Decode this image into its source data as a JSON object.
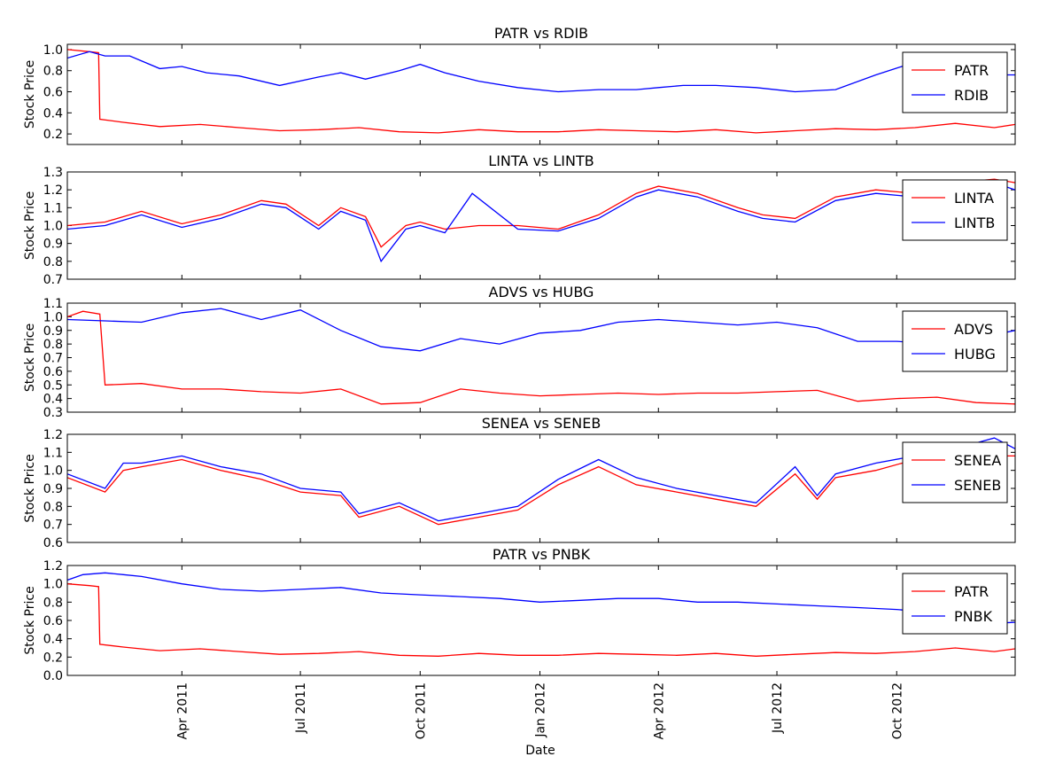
{
  "chart_data": [
    {
      "type": "line",
      "title": "PATR vs RDIB",
      "ylabel": "Stock Price",
      "ylim": [
        0.1,
        1.05
      ],
      "yticks": [
        "0.2",
        "0.4",
        "0.6",
        "0.8",
        "1.0"
      ],
      "legend": "top-right",
      "series": [
        {
          "name": "PATR",
          "color": "#ff0000",
          "x": [
            "2011-01-03",
            "2011-01-20",
            "2011-01-27",
            "2011-01-28",
            "2011-02-15",
            "2011-03-15",
            "2011-04-15",
            "2011-05-15",
            "2011-06-15",
            "2011-07-15",
            "2011-08-15",
            "2011-09-15",
            "2011-10-15",
            "2011-11-15",
            "2011-12-15",
            "2012-01-15",
            "2012-02-15",
            "2012-03-15",
            "2012-04-15",
            "2012-05-15",
            "2012-06-15",
            "2012-07-15",
            "2012-08-15",
            "2012-09-15",
            "2012-10-15",
            "2012-11-15",
            "2012-12-15",
            "2012-12-31"
          ],
          "values": [
            1.0,
            0.98,
            0.97,
            0.34,
            0.31,
            0.27,
            0.29,
            0.26,
            0.23,
            0.24,
            0.26,
            0.22,
            0.21,
            0.24,
            0.22,
            0.22,
            0.24,
            0.23,
            0.22,
            0.24,
            0.21,
            0.23,
            0.25,
            0.24,
            0.26,
            0.3,
            0.26,
            0.29
          ]
        },
        {
          "name": "RDIB",
          "color": "#0000ff",
          "x": [
            "2011-01-03",
            "2011-01-20",
            "2011-02-01",
            "2011-02-20",
            "2011-03-15",
            "2011-04-01",
            "2011-04-20",
            "2011-05-15",
            "2011-06-15",
            "2011-07-15",
            "2011-08-01",
            "2011-08-20",
            "2011-09-15",
            "2011-10-01",
            "2011-10-20",
            "2011-11-15",
            "2011-12-15",
            "2012-01-15",
            "2012-02-15",
            "2012-03-15",
            "2012-04-01",
            "2012-04-20",
            "2012-05-15",
            "2012-06-15",
            "2012-07-15",
            "2012-08-15",
            "2012-09-15",
            "2012-10-15",
            "2012-11-15",
            "2012-12-15",
            "2012-12-31"
          ],
          "values": [
            0.92,
            0.98,
            0.94,
            0.94,
            0.82,
            0.84,
            0.78,
            0.75,
            0.66,
            0.74,
            0.78,
            0.72,
            0.8,
            0.86,
            0.78,
            0.7,
            0.64,
            0.6,
            0.62,
            0.62,
            0.64,
            0.66,
            0.66,
            0.64,
            0.6,
            0.62,
            0.76,
            0.88,
            0.82,
            0.76,
            0.76
          ]
        }
      ]
    },
    {
      "type": "line",
      "title": "LINTA vs LINTB",
      "ylabel": "Stock Price",
      "ylim": [
        0.7,
        1.3
      ],
      "yticks": [
        "0.7",
        "0.8",
        "0.9",
        "1.0",
        "1.1",
        "1.2",
        "1.3"
      ],
      "legend": "top-right",
      "series": [
        {
          "name": "LINTA",
          "color": "#ff0000",
          "x": [
            "2011-01-03",
            "2011-02-01",
            "2011-03-01",
            "2011-04-01",
            "2011-05-01",
            "2011-06-01",
            "2011-06-20",
            "2011-07-15",
            "2011-08-01",
            "2011-08-20",
            "2011-09-01",
            "2011-09-20",
            "2011-10-01",
            "2011-10-20",
            "2011-11-15",
            "2011-12-15",
            "2012-01-15",
            "2012-02-15",
            "2012-03-15",
            "2012-04-01",
            "2012-05-01",
            "2012-06-01",
            "2012-06-20",
            "2012-07-15",
            "2012-08-15",
            "2012-09-15",
            "2012-10-15",
            "2012-11-15",
            "2012-12-15",
            "2012-12-31"
          ],
          "values": [
            1.0,
            1.02,
            1.08,
            1.01,
            1.06,
            1.14,
            1.12,
            1.0,
            1.1,
            1.05,
            0.88,
            1.0,
            1.02,
            0.98,
            1.0,
            1.0,
            0.98,
            1.06,
            1.18,
            1.22,
            1.18,
            1.1,
            1.06,
            1.04,
            1.16,
            1.2,
            1.18,
            1.24,
            1.26,
            1.24
          ]
        },
        {
          "name": "LINTB",
          "color": "#0000ff",
          "x": [
            "2011-01-03",
            "2011-02-01",
            "2011-03-01",
            "2011-04-01",
            "2011-05-01",
            "2011-06-01",
            "2011-06-20",
            "2011-07-15",
            "2011-08-01",
            "2011-08-20",
            "2011-09-01",
            "2011-09-20",
            "2011-10-01",
            "2011-10-20",
            "2011-11-10",
            "2011-12-15",
            "2012-01-15",
            "2012-02-15",
            "2012-03-15",
            "2012-04-01",
            "2012-05-01",
            "2012-06-01",
            "2012-06-20",
            "2012-07-15",
            "2012-08-15",
            "2012-09-15",
            "2012-10-15",
            "2012-11-15",
            "2012-12-15",
            "2012-12-31"
          ],
          "values": [
            0.98,
            1.0,
            1.06,
            0.99,
            1.04,
            1.12,
            1.1,
            0.98,
            1.08,
            1.03,
            0.8,
            0.98,
            1.0,
            0.96,
            1.18,
            0.98,
            0.97,
            1.04,
            1.16,
            1.2,
            1.16,
            1.08,
            1.04,
            1.02,
            1.14,
            1.18,
            1.16,
            1.22,
            1.24,
            1.2
          ]
        }
      ]
    },
    {
      "type": "line",
      "title": "ADVS vs HUBG",
      "ylabel": "Stock Price",
      "ylim": [
        0.3,
        1.1
      ],
      "yticks": [
        "0.3",
        "0.4",
        "0.5",
        "0.6",
        "0.7",
        "0.8",
        "0.9",
        "1.0",
        "1.1"
      ],
      "legend": "top-right",
      "series": [
        {
          "name": "ADVS",
          "color": "#ff0000",
          "x": [
            "2011-01-03",
            "2011-01-15",
            "2011-01-28",
            "2011-02-01",
            "2011-03-01",
            "2011-04-01",
            "2011-05-01",
            "2011-06-01",
            "2011-07-01",
            "2011-08-01",
            "2011-09-01",
            "2011-10-01",
            "2011-11-01",
            "2011-12-01",
            "2012-01-01",
            "2012-02-01",
            "2012-03-01",
            "2012-04-01",
            "2012-05-01",
            "2012-06-01",
            "2012-07-01",
            "2012-08-01",
            "2012-09-01",
            "2012-10-01",
            "2012-11-01",
            "2012-12-01",
            "2012-12-31"
          ],
          "values": [
            1.0,
            1.04,
            1.02,
            0.5,
            0.51,
            0.47,
            0.47,
            0.45,
            0.44,
            0.47,
            0.36,
            0.37,
            0.47,
            0.44,
            0.42,
            0.43,
            0.44,
            0.43,
            0.44,
            0.44,
            0.45,
            0.46,
            0.38,
            0.4,
            0.41,
            0.37,
            0.36
          ]
        },
        {
          "name": "HUBG",
          "color": "#0000ff",
          "x": [
            "2011-01-03",
            "2011-02-01",
            "2011-03-01",
            "2011-04-01",
            "2011-05-01",
            "2011-06-01",
            "2011-07-01",
            "2011-08-01",
            "2011-09-01",
            "2011-10-01",
            "2011-11-01",
            "2011-12-01",
            "2012-01-01",
            "2012-02-01",
            "2012-03-01",
            "2012-04-01",
            "2012-05-01",
            "2012-06-01",
            "2012-07-01",
            "2012-08-01",
            "2012-09-01",
            "2012-10-01",
            "2012-11-01",
            "2012-12-01",
            "2012-12-31"
          ],
          "values": [
            0.98,
            0.97,
            0.96,
            1.03,
            1.06,
            0.98,
            1.05,
            0.9,
            0.78,
            0.75,
            0.84,
            0.8,
            0.88,
            0.9,
            0.96,
            0.98,
            0.96,
            0.94,
            0.96,
            0.92,
            0.82,
            0.82,
            0.8,
            0.84,
            0.9
          ]
        }
      ]
    },
    {
      "type": "line",
      "title": "SENEA vs SENEB",
      "ylabel": "Stock Price",
      "ylim": [
        0.6,
        1.2
      ],
      "yticks": [
        "0.6",
        "0.7",
        "0.8",
        "0.9",
        "1.0",
        "1.1",
        "1.2"
      ],
      "legend": "top-right",
      "series": [
        {
          "name": "SENEA",
          "color": "#ff0000",
          "x": [
            "2011-01-03",
            "2011-02-01",
            "2011-02-15",
            "2011-03-01",
            "2011-04-01",
            "2011-05-01",
            "2011-06-01",
            "2011-07-01",
            "2011-08-01",
            "2011-08-15",
            "2011-09-15",
            "2011-10-15",
            "2011-11-15",
            "2011-12-15",
            "2012-01-15",
            "2012-02-15",
            "2012-03-15",
            "2012-04-15",
            "2012-05-15",
            "2012-06-15",
            "2012-07-15",
            "2012-08-01",
            "2012-08-15",
            "2012-09-15",
            "2012-10-15",
            "2012-11-15",
            "2012-12-15",
            "2012-12-31"
          ],
          "values": [
            0.96,
            0.88,
            1.0,
            1.02,
            1.06,
            1.0,
            0.95,
            0.88,
            0.86,
            0.74,
            0.8,
            0.7,
            0.74,
            0.78,
            0.92,
            1.02,
            0.92,
            0.88,
            0.84,
            0.8,
            0.98,
            0.84,
            0.96,
            1.0,
            1.06,
            1.1,
            1.08,
            1.08
          ]
        },
        {
          "name": "SENEB",
          "color": "#0000ff",
          "x": [
            "2011-01-03",
            "2011-02-01",
            "2011-02-15",
            "2011-03-01",
            "2011-04-01",
            "2011-05-01",
            "2011-06-01",
            "2011-07-01",
            "2011-08-01",
            "2011-08-15",
            "2011-09-15",
            "2011-10-15",
            "2011-11-15",
            "2011-12-15",
            "2012-01-15",
            "2012-02-15",
            "2012-03-15",
            "2012-04-15",
            "2012-05-15",
            "2012-06-15",
            "2012-07-15",
            "2012-08-01",
            "2012-08-15",
            "2012-09-15",
            "2012-10-15",
            "2012-11-15",
            "2012-12-15",
            "2012-12-31"
          ],
          "values": [
            0.98,
            0.9,
            1.04,
            1.04,
            1.08,
            1.02,
            0.98,
            0.9,
            0.88,
            0.76,
            0.82,
            0.72,
            0.76,
            0.8,
            0.95,
            1.06,
            0.96,
            0.9,
            0.86,
            0.82,
            1.02,
            0.86,
            0.98,
            1.04,
            1.08,
            1.12,
            1.18,
            1.12
          ]
        }
      ]
    },
    {
      "type": "line",
      "title": "PATR vs PNBK",
      "ylabel": "Stock Price",
      "xlabel": "Date",
      "ylim": [
        0.0,
        1.2
      ],
      "yticks": [
        "0.0",
        "0.2",
        "0.4",
        "0.6",
        "0.8",
        "1.0",
        "1.2"
      ],
      "xticks": [
        "Apr 2011",
        "Jul 2011",
        "Oct 2011",
        "Jan 2012",
        "Apr 2012",
        "Jul 2012",
        "Oct 2012"
      ],
      "legend": "top-right",
      "series": [
        {
          "name": "PATR",
          "color": "#ff0000",
          "x": [
            "2011-01-03",
            "2011-01-20",
            "2011-01-27",
            "2011-01-28",
            "2011-02-15",
            "2011-03-15",
            "2011-04-15",
            "2011-05-15",
            "2011-06-15",
            "2011-07-15",
            "2011-08-15",
            "2011-09-15",
            "2011-10-15",
            "2011-11-15",
            "2011-12-15",
            "2012-01-15",
            "2012-02-15",
            "2012-03-15",
            "2012-04-15",
            "2012-05-15",
            "2012-06-15",
            "2012-07-15",
            "2012-08-15",
            "2012-09-15",
            "2012-10-15",
            "2012-11-15",
            "2012-12-15",
            "2012-12-31"
          ],
          "values": [
            1.0,
            0.98,
            0.97,
            0.34,
            0.31,
            0.27,
            0.29,
            0.26,
            0.23,
            0.24,
            0.26,
            0.22,
            0.21,
            0.24,
            0.22,
            0.22,
            0.24,
            0.23,
            0.22,
            0.24,
            0.21,
            0.23,
            0.25,
            0.24,
            0.26,
            0.3,
            0.26,
            0.29
          ]
        },
        {
          "name": "PNBK",
          "color": "#0000ff",
          "x": [
            "2011-01-03",
            "2011-01-15",
            "2011-02-01",
            "2011-02-15",
            "2011-03-01",
            "2011-04-01",
            "2011-05-01",
            "2011-06-01",
            "2011-07-01",
            "2011-08-01",
            "2011-09-01",
            "2011-10-01",
            "2011-11-01",
            "2011-12-01",
            "2012-01-01",
            "2012-02-01",
            "2012-03-01",
            "2012-04-01",
            "2012-05-01",
            "2012-06-01",
            "2012-07-01",
            "2012-08-01",
            "2012-09-01",
            "2012-10-01",
            "2012-11-01",
            "2012-12-01",
            "2012-12-31"
          ],
          "values": [
            1.04,
            1.1,
            1.12,
            1.1,
            1.08,
            1.0,
            0.94,
            0.92,
            0.94,
            0.96,
            0.9,
            0.88,
            0.86,
            0.84,
            0.8,
            0.82,
            0.84,
            0.84,
            0.8,
            0.8,
            0.78,
            0.76,
            0.74,
            0.72,
            0.68,
            0.56,
            0.58
          ]
        }
      ]
    }
  ]
}
